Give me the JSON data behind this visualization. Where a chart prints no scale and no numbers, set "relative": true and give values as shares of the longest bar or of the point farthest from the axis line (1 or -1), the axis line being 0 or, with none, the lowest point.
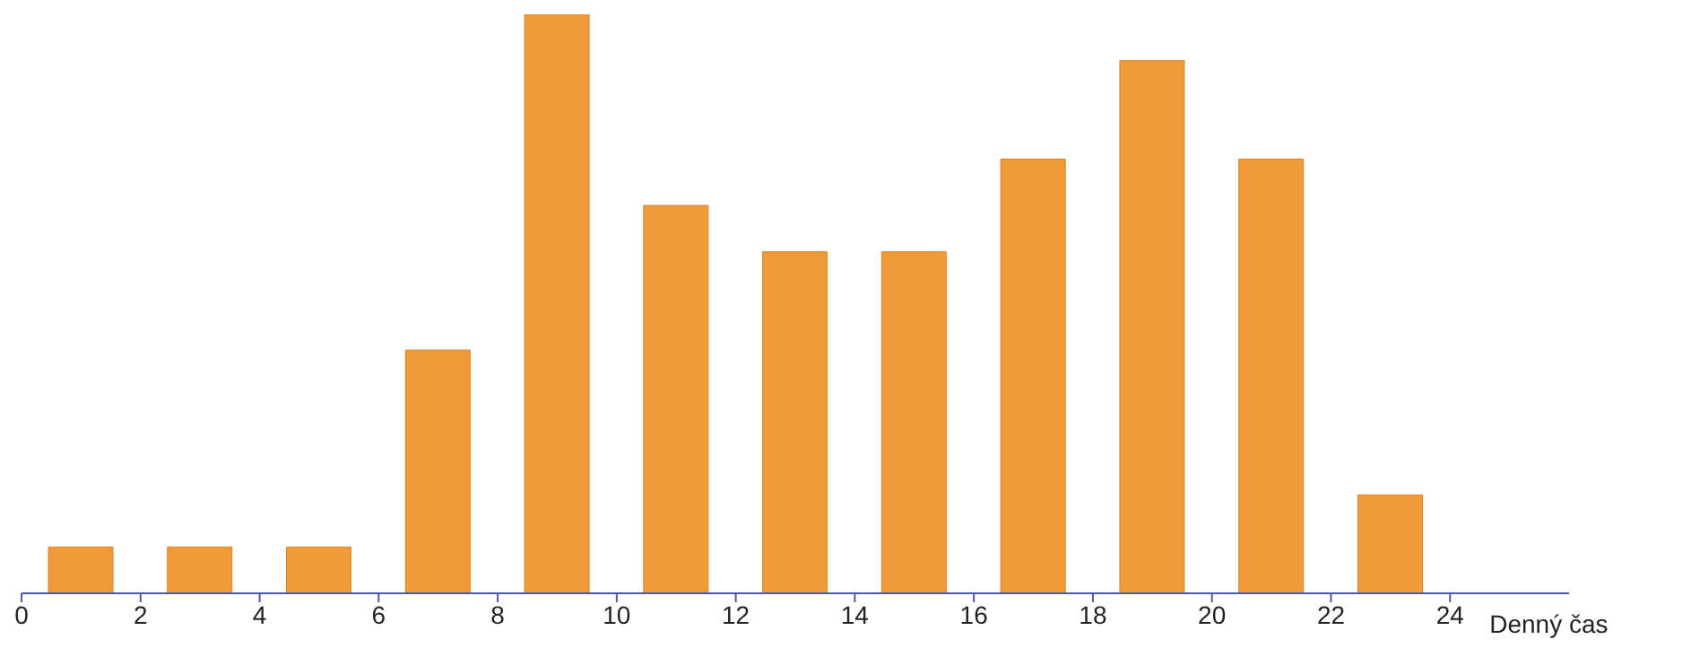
{
  "chart_data": {
    "type": "bar",
    "relative": true,
    "xlabel": "Denný čas",
    "x": [
      1,
      3,
      5,
      7,
      9,
      11,
      13,
      15,
      17,
      19,
      21,
      23
    ],
    "values": [
      0.08,
      0.08,
      0.08,
      0.42,
      1,
      0.67,
      0.59,
      0.59,
      0.75,
      0.92,
      0.75,
      0.17
    ],
    "color": "#f09a38",
    "xlim": [
      0,
      26
    ],
    "xticks": [
      0,
      2,
      4,
      6,
      8,
      10,
      12,
      14,
      16,
      18,
      20,
      22,
      24
    ],
    "grid": false,
    "legend": false
  }
}
